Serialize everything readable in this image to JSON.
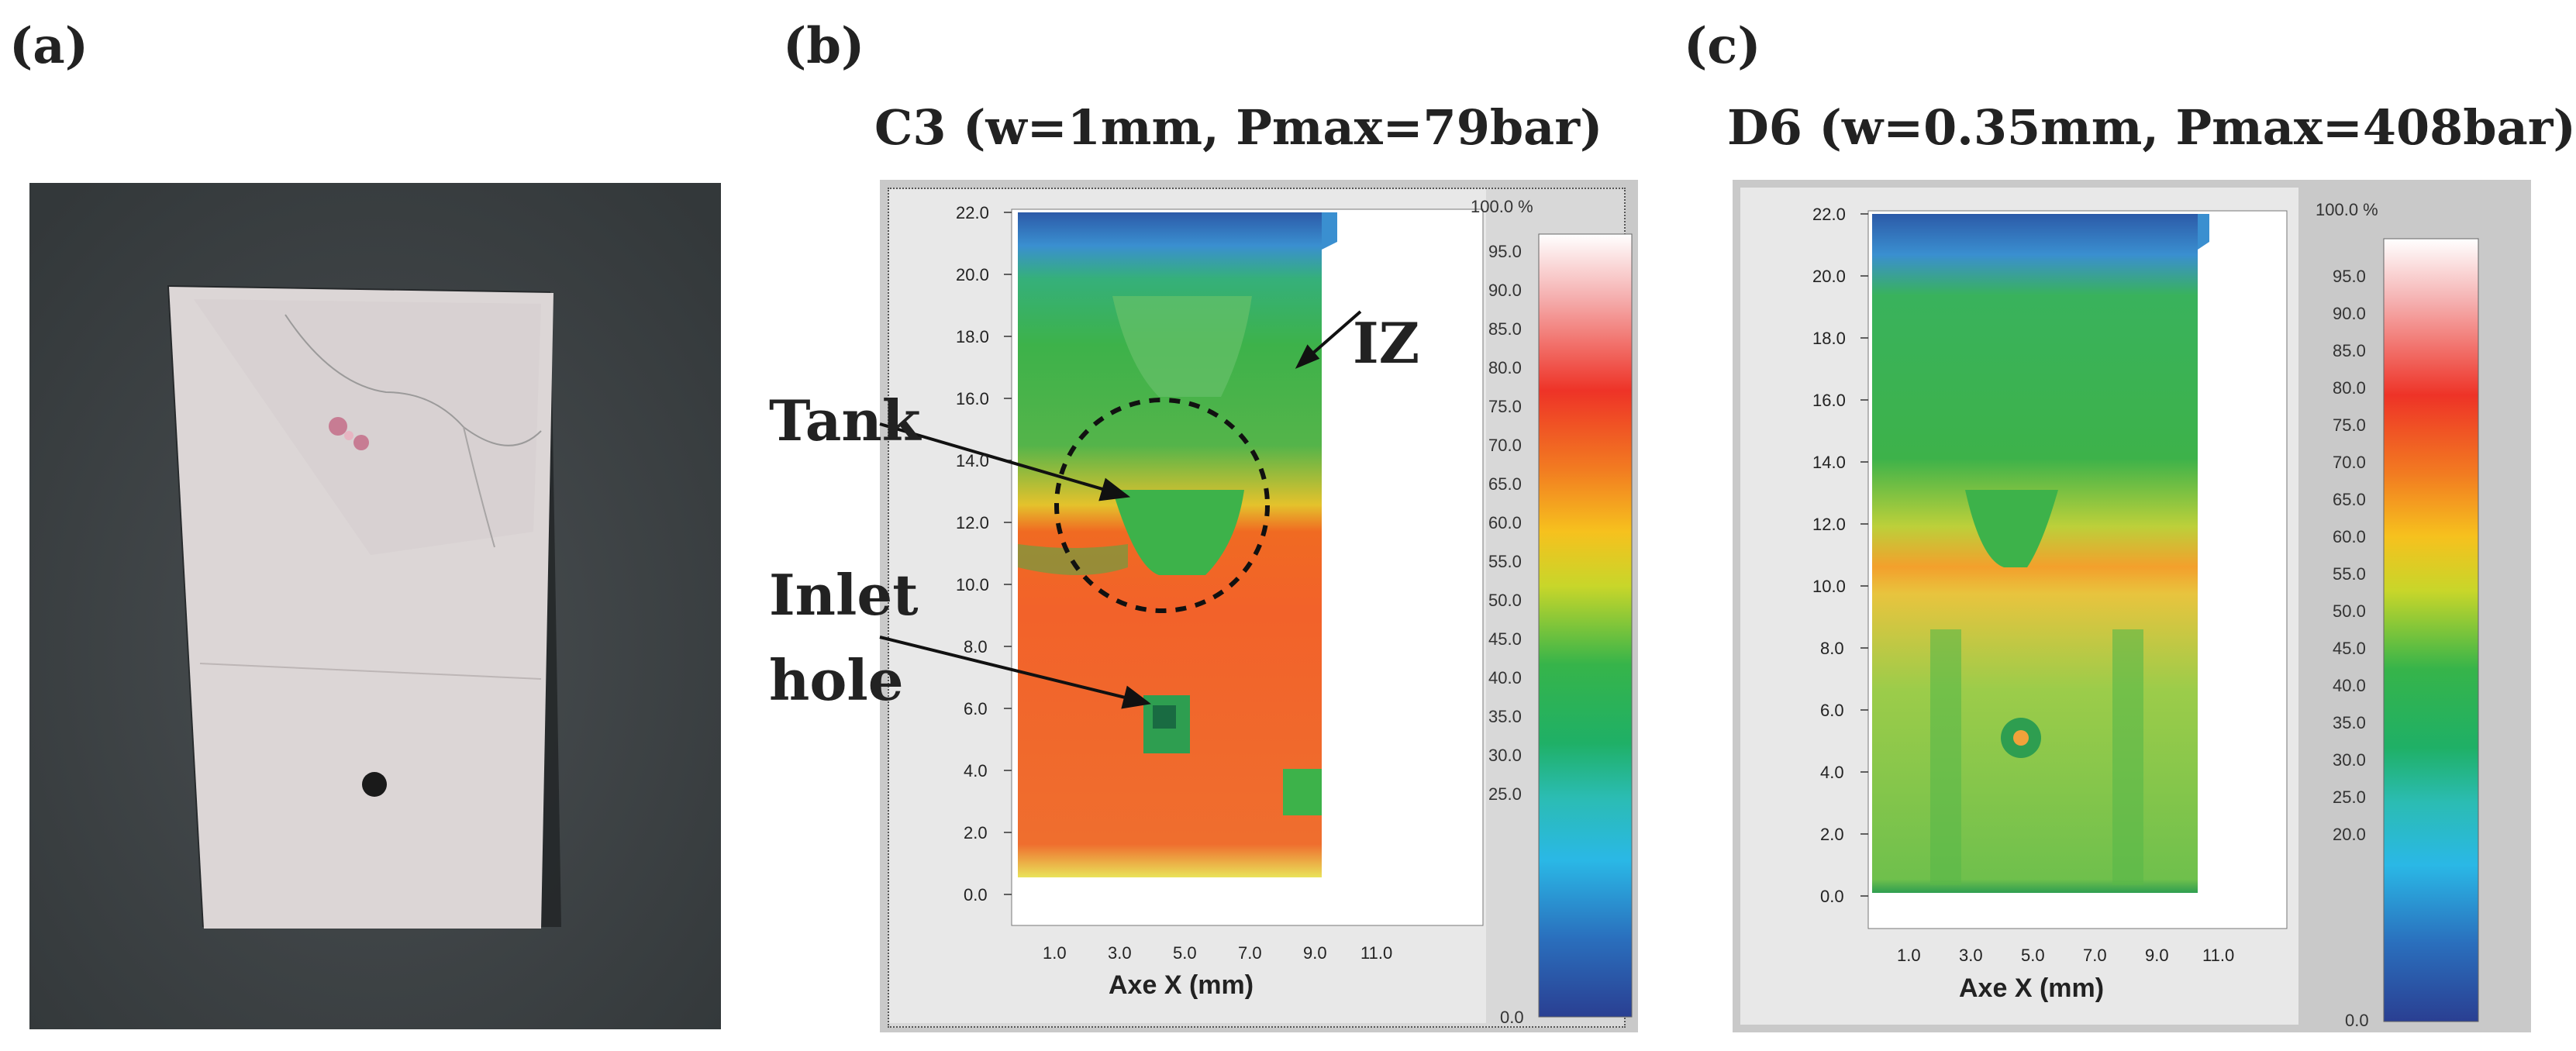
{
  "panels": [
    {
      "label": "(a)"
    },
    {
      "label": "(b)",
      "title": "C3 (w=1mm, Pmax=79bar)",
      "y_ticks": [
        "22.0",
        "20.0",
        "18.0",
        "16.0",
        "14.0",
        "12.0",
        "10.0",
        "8.0",
        "6.0",
        "4.0",
        "2.0",
        "0.0"
      ],
      "x_ticks": [
        "1.0",
        "3.0",
        "5.0",
        "7.0",
        "9.0",
        "11.0"
      ],
      "x_axis_label": "Axe X (mm)",
      "scale_top": "100.0 %",
      "scale_ticks": [
        "95.0",
        "90.0",
        "85.0",
        "80.0",
        "75.0",
        "70.0",
        "65.0",
        "60.0",
        "55.0",
        "50.0",
        "45.0",
        "40.0",
        "35.0",
        "30.0",
        "25.0"
      ],
      "scale_bottom": "0.0",
      "annotations": {
        "tank": "Tank",
        "iz": "IZ",
        "inlet_line1": "Inlet",
        "inlet_line2": "hole"
      }
    },
    {
      "label": "(c)",
      "title": "D6 (w=0.35mm, Pmax=408bar)",
      "y_ticks": [
        "22.0",
        "20.0",
        "18.0",
        "16.0",
        "14.0",
        "12.0",
        "10.0",
        "8.0",
        "6.0",
        "4.0",
        "2.0",
        "0.0"
      ],
      "x_ticks": [
        "1.0",
        "3.0",
        "5.0",
        "7.0",
        "9.0",
        "11.0"
      ],
      "x_axis_label": "Axe X (mm)",
      "scale_top": "100.0 %",
      "scale_ticks": [
        "95.0",
        "90.0",
        "85.0",
        "80.0",
        "75.0",
        "70.0",
        "65.0",
        "60.0",
        "55.0",
        "50.0",
        "45.0",
        "40.0",
        "35.0",
        "30.0",
        "25.0",
        "20.0"
      ],
      "scale_bottom": "0.0"
    }
  ],
  "colors": {
    "panel_bg": "#c8c8c8",
    "plot_bg": "#ffffff",
    "photo_bg": "#3f4446",
    "plate": "#dcd6d6"
  }
}
